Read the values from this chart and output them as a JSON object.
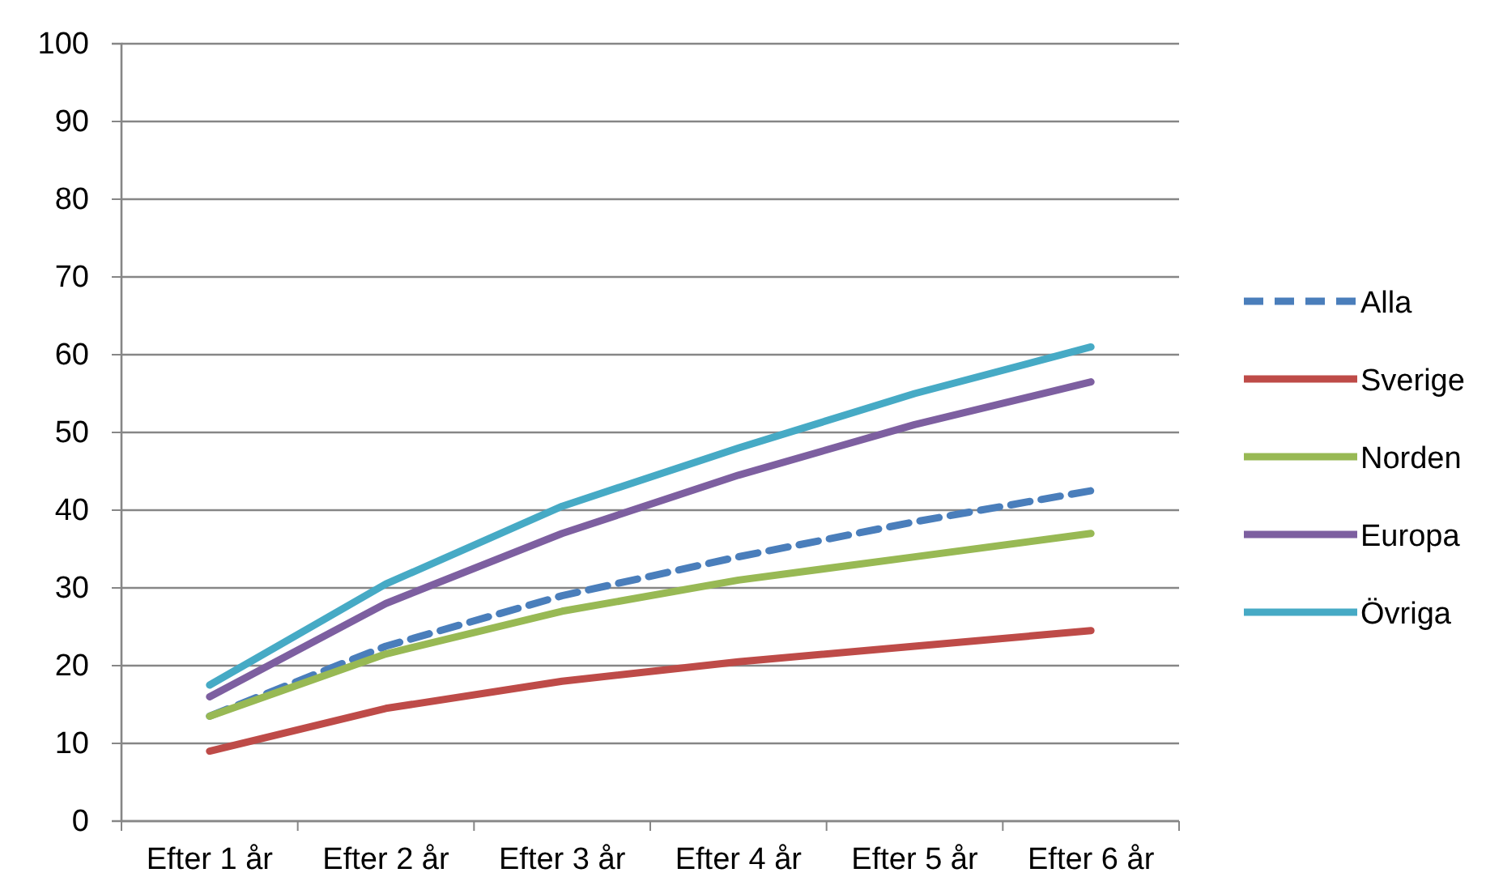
{
  "chart_data": {
    "type": "line",
    "categories": [
      "Efter 1 år",
      "Efter 2 år",
      "Efter 3 år",
      "Efter 4 år",
      "Efter 5 år",
      "Efter 6 år"
    ],
    "series": [
      {
        "name": "Alla",
        "color": "#4a7ebb",
        "line_style": "dashed",
        "values": [
          13.5,
          22.5,
          29,
          34,
          38.5,
          42.5
        ]
      },
      {
        "name": "Sverige",
        "color": "#be4b48",
        "values": [
          9,
          14.5,
          18,
          20.5,
          22.5,
          24.5
        ]
      },
      {
        "name": "Norden",
        "color": "#98b954",
        "values": [
          13.5,
          21.5,
          27,
          31,
          34,
          37
        ]
      },
      {
        "name": "Europa",
        "color": "#7d5fa0",
        "values": [
          16,
          28,
          37,
          44.5,
          51,
          56.5
        ]
      },
      {
        "name": "Övriga",
        "color": "#46aac5",
        "values": [
          17.5,
          30.5,
          40.5,
          48,
          55,
          61
        ]
      }
    ],
    "ylim": [
      0,
      100
    ],
    "yticks": [
      0,
      10,
      20,
      30,
      40,
      50,
      60,
      70,
      80,
      90,
      100
    ],
    "grid": "y",
    "legend": "right",
    "line_style": "solid",
    "marker": "none"
  }
}
